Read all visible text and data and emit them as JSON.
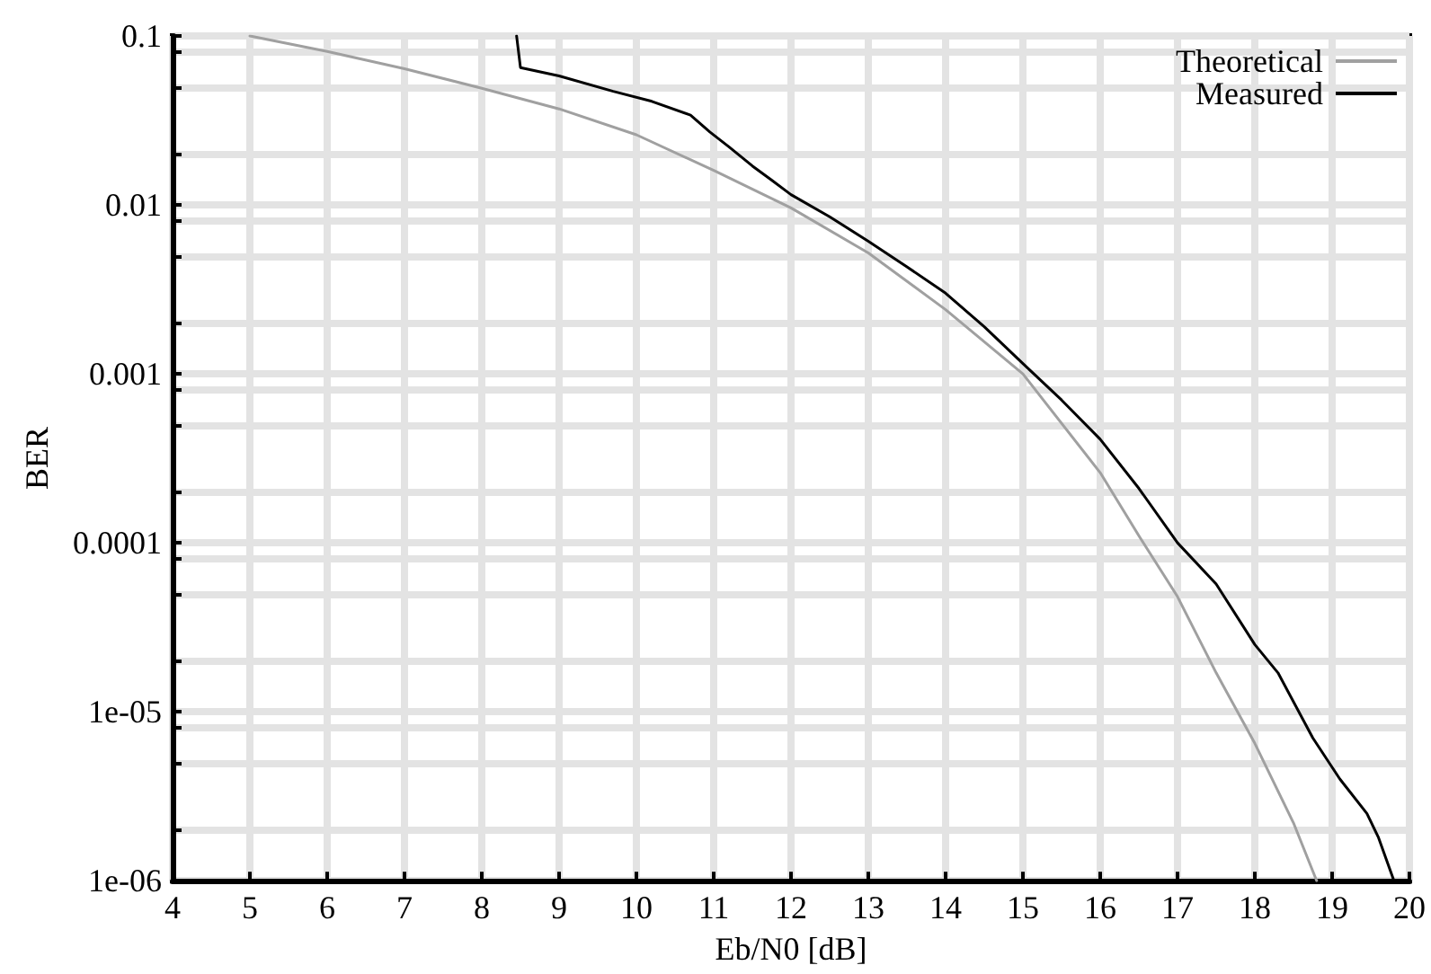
{
  "chart_data": {
    "type": "line",
    "xlabel": "Eb/N0 [dB]",
    "ylabel": "BER",
    "log": "y",
    "grid": true,
    "legend": "top right",
    "marker": "none",
    "line_style": "solid",
    "xlim": [
      4,
      20
    ],
    "xticks": [
      4,
      5,
      6,
      7,
      8,
      9,
      10,
      11,
      12,
      13,
      14,
      15,
      16,
      17,
      18,
      19,
      20
    ],
    "ylim": [
      1e-06,
      0.1
    ],
    "yticks": [
      0.1,
      {
        "value": 0.08,
        "label": null
      },
      {
        "value": 0.05,
        "label": null
      },
      {
        "value": 0.02,
        "label": null
      },
      0.01,
      {
        "value": 0.008,
        "label": null
      },
      {
        "value": 0.005,
        "label": null
      },
      {
        "value": 0.002,
        "label": null
      },
      0.001,
      {
        "value": 0.0008,
        "label": null
      },
      {
        "value": 0.0005,
        "label": null
      },
      {
        "value": 0.0002,
        "label": null
      },
      0.0001,
      {
        "value": 8e-05,
        "label": null
      },
      {
        "value": 5e-05,
        "label": null
      },
      {
        "value": 2e-05,
        "label": null
      },
      {
        "value": 1e-05,
        "label": "1e-05"
      },
      {
        "value": 8e-06,
        "label": null
      },
      {
        "value": 5e-06,
        "label": null
      },
      {
        "value": 2e-06,
        "label": null
      },
      {
        "value": 1e-06,
        "label": "1e-06"
      }
    ],
    "series": [
      {
        "name": "Theoretical",
        "color": "#a0a0a0",
        "x": [
          5,
          6,
          7,
          8,
          9,
          10,
          11,
          12,
          13,
          14,
          15,
          16,
          16.5,
          17,
          17.5,
          18,
          18.5,
          18.8
        ],
        "values": [
          0.1,
          0.081,
          0.064,
          0.049,
          0.037,
          0.026,
          0.016,
          0.0096,
          0.0052,
          0.0024,
          0.001,
          0.00026,
          0.00011,
          4.8e-05,
          1.7e-05,
          6.5e-06,
          2.2e-06,
          1e-06
        ]
      },
      {
        "name": "Measured",
        "color": "#000000",
        "x": [
          8.45,
          8.5,
          9,
          9.7,
          10.2,
          10.7,
          10.95,
          11.2,
          11.5,
          11.75,
          12,
          12.5,
          13,
          13.5,
          14,
          14.5,
          15,
          15.5,
          16,
          16.5,
          17,
          17.5,
          18,
          18.3,
          18.75,
          19.1,
          19.45,
          19.6,
          19.8
        ],
        "values": [
          0.1,
          0.065,
          0.058,
          0.047,
          0.041,
          0.034,
          0.027,
          0.022,
          0.017,
          0.014,
          0.0115,
          0.0085,
          0.0061,
          0.0043,
          0.003,
          0.0019,
          0.00115,
          0.0007,
          0.00041,
          0.00021,
          0.0001,
          5.7e-05,
          2.5e-05,
          1.7e-05,
          7e-06,
          4e-06,
          2.5e-06,
          1.8e-06,
          1e-06
        ]
      }
    ]
  }
}
